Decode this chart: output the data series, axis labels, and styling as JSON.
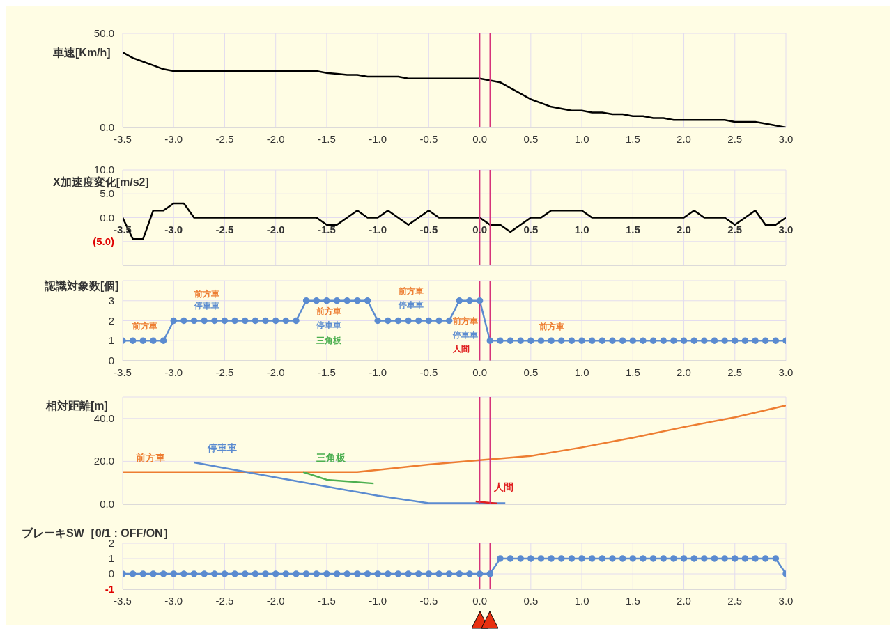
{
  "chart_data": [
    {
      "type": "line",
      "title": "車速[Km/h]",
      "x": [
        -3.5,
        -3.4,
        -3.3,
        -3.2,
        -3.1,
        -3.0,
        -2.9,
        -2.8,
        -2.7,
        -2.6,
        -2.5,
        -2.4,
        -2.3,
        -2.2,
        -2.1,
        -2.0,
        -1.9,
        -1.8,
        -1.7,
        -1.6,
        -1.5,
        -1.4,
        -1.3,
        -1.2,
        -1.1,
        -1.0,
        -0.9,
        -0.8,
        -0.7,
        -0.6,
        -0.5,
        -0.4,
        -0.3,
        -0.2,
        -0.1,
        0.0,
        0.1,
        0.2,
        0.3,
        0.4,
        0.5,
        0.6,
        0.7,
        0.8,
        0.9,
        1.0,
        1.1,
        1.2,
        1.3,
        1.4,
        1.5,
        1.6,
        1.7,
        1.8,
        1.9,
        2.0,
        2.1,
        2.2,
        2.3,
        2.4,
        2.5,
        2.6,
        2.7,
        2.8,
        2.9,
        3.0
      ],
      "series": [
        {
          "color": "#000000",
          "values": [
            40,
            37,
            35,
            33,
            31,
            30,
            30,
            30,
            30,
            30,
            30,
            30,
            30,
            30,
            30,
            30,
            30,
            30,
            30,
            30,
            29,
            28.5,
            28,
            28,
            27,
            27,
            27,
            27,
            26,
            26,
            26,
            26,
            26,
            26,
            26,
            26,
            25,
            24,
            21,
            18,
            15,
            13,
            11,
            10,
            9,
            9,
            8,
            8,
            7,
            7,
            6,
            6,
            5,
            5,
            4,
            4,
            4,
            4,
            4,
            4,
            3,
            3,
            3,
            2,
            1,
            0
          ]
        }
      ],
      "xlim": [
        -3.5,
        3.0
      ],
      "xticks": [
        {
          "value": -3.5,
          "label": "-3.5"
        },
        {
          "value": -3,
          "label": "-3.0"
        },
        {
          "value": -2.5,
          "label": "-2.5"
        },
        {
          "value": -2,
          "label": "-2.0"
        },
        {
          "value": -1.5,
          "label": "-1.5"
        },
        {
          "value": -1,
          "label": "-1.0"
        },
        {
          "value": -0.5,
          "label": "-0.5"
        },
        {
          "value": 0,
          "label": "0.0"
        },
        {
          "value": 0.5,
          "label": "0.5"
        },
        {
          "value": 1,
          "label": "1.0"
        },
        {
          "value": 1.5,
          "label": "1.5"
        },
        {
          "value": 2,
          "label": "2.0"
        },
        {
          "value": 2.5,
          "label": "2.5"
        },
        {
          "value": 3,
          "label": "3.0"
        }
      ],
      "ylim": [
        0,
        50
      ],
      "yticks": [
        {
          "value": 0,
          "label": "0.0"
        },
        {
          "value": 50,
          "label": "50.0"
        }
      ],
      "grid": true,
      "ref_lines": [
        {
          "axis": "x",
          "value": 0,
          "color": "#d6337a"
        },
        {
          "axis": "x",
          "value": 0.1,
          "color": "#d6337a"
        }
      ]
    },
    {
      "type": "line",
      "title": "X加速度変化[m/s2]",
      "x": [
        -3.5,
        -3.4,
        -3.3,
        -3.2,
        -3.1,
        -3.0,
        -2.9,
        -2.8,
        -2.7,
        -2.6,
        -2.5,
        -2.4,
        -2.3,
        -2.2,
        -2.1,
        -2.0,
        -1.9,
        -1.8,
        -1.7,
        -1.6,
        -1.5,
        -1.4,
        -1.3,
        -1.2,
        -1.1,
        -1.0,
        -0.9,
        -0.8,
        -0.7,
        -0.6,
        -0.5,
        -0.4,
        -0.3,
        -0.2,
        -0.1,
        0.0,
        0.1,
        0.2,
        0.3,
        0.4,
        0.5,
        0.6,
        0.7,
        0.8,
        0.9,
        1.0,
        1.1,
        1.2,
        1.3,
        1.4,
        1.5,
        1.6,
        1.7,
        1.8,
        1.9,
        2.0,
        2.1,
        2.2,
        2.3,
        2.4,
        2.5,
        2.6,
        2.7,
        2.8,
        2.9,
        3.0
      ],
      "series": [
        {
          "color": "#000000",
          "values": [
            0,
            -4.5,
            -4.5,
            1.5,
            1.5,
            3,
            3,
            0,
            0,
            0,
            0,
            0,
            0,
            0,
            0,
            0,
            0,
            0,
            0,
            0,
            -1.5,
            -1.5,
            0,
            1.5,
            0,
            0,
            1.5,
            0,
            -1.5,
            0,
            1.5,
            0,
            0,
            0,
            0,
            0,
            -1.5,
            -1.5,
            -3,
            -1.5,
            0,
            0,
            1.5,
            1.5,
            1.5,
            1.5,
            0,
            0,
            0,
            0,
            0,
            0,
            0,
            0,
            0,
            0,
            1.5,
            0,
            0,
            0,
            -1.5,
            0,
            1.5,
            -1.5,
            -1.5,
            0
          ]
        }
      ],
      "xlim": [
        -3.5,
        3.0
      ],
      "xticks": [
        {
          "value": -3.5,
          "label": "-3.5"
        },
        {
          "value": -3,
          "label": "-3.0"
        },
        {
          "value": -2.5,
          "label": "-2.5"
        },
        {
          "value": -2,
          "label": "-2.0"
        },
        {
          "value": -1.5,
          "label": "-1.5"
        },
        {
          "value": -1,
          "label": "-1.0"
        },
        {
          "value": -0.5,
          "label": "-0.5"
        },
        {
          "value": 0,
          "label": "0.0"
        },
        {
          "value": 0.5,
          "label": "0.5"
        },
        {
          "value": 1,
          "label": "1.0"
        },
        {
          "value": 1.5,
          "label": "1.5"
        },
        {
          "value": 2,
          "label": "2.0"
        },
        {
          "value": 2.5,
          "label": "2.5"
        },
        {
          "value": 3,
          "label": "3.0"
        }
      ],
      "ylim": [
        -10,
        10
      ],
      "yticks": [
        {
          "value": 10,
          "label": "10.0"
        },
        {
          "value": 5,
          "label": "5.0"
        },
        {
          "value": 0,
          "label": "0.0"
        },
        {
          "value": -5,
          "label": "(5.0)"
        },
        {
          "value": -10,
          "label": null
        }
      ],
      "grid": true,
      "ref_lines": [
        {
          "axis": "x",
          "value": 0,
          "color": "#d6337a"
        },
        {
          "axis": "x",
          "value": 0.1,
          "color": "#d6337a"
        }
      ]
    },
    {
      "type": "line",
      "title": "認識対象数[個]",
      "marker": "circle",
      "x": [
        -3.5,
        -3.4,
        -3.3,
        -3.2,
        -3.1,
        -3.0,
        -2.9,
        -2.8,
        -2.7,
        -2.6,
        -2.5,
        -2.4,
        -2.3,
        -2.2,
        -2.1,
        -2.0,
        -1.9,
        -1.8,
        -1.7,
        -1.6,
        -1.5,
        -1.4,
        -1.3,
        -1.2,
        -1.1,
        -1.0,
        -0.9,
        -0.8,
        -0.7,
        -0.6,
        -0.5,
        -0.4,
        -0.3,
        -0.2,
        -0.1,
        0.0,
        0.1,
        0.2,
        0.3,
        0.4,
        0.5,
        0.6,
        0.7,
        0.8,
        0.9,
        1.0,
        1.1,
        1.2,
        1.3,
        1.4,
        1.5,
        1.6,
        1.7,
        1.8,
        1.9,
        2.0,
        2.1,
        2.2,
        2.3,
        2.4,
        2.5,
        2.6,
        2.7,
        2.8,
        2.9,
        3.0
      ],
      "series": [
        {
          "color": "#5b8bd0",
          "values": [
            1,
            1,
            1,
            1,
            1,
            2,
            2,
            2,
            2,
            2,
            2,
            2,
            2,
            2,
            2,
            2,
            2,
            2,
            3,
            3,
            3,
            3,
            3,
            3,
            3,
            2,
            2,
            2,
            2,
            2,
            2,
            2,
            2,
            3,
            3,
            3,
            1,
            1,
            1,
            1,
            1,
            1,
            1,
            1,
            1,
            1,
            1,
            1,
            1,
            1,
            1,
            1,
            1,
            1,
            1,
            1,
            1,
            1,
            1,
            1,
            1,
            1,
            1,
            1,
            1,
            1
          ]
        }
      ],
      "xlim": [
        -3.5,
        3.0
      ],
      "xticks": [
        {
          "value": -3.5,
          "label": "-3.5"
        },
        {
          "value": -3,
          "label": "-3.0"
        },
        {
          "value": -2.5,
          "label": "-2.5"
        },
        {
          "value": -2,
          "label": "-2.0"
        },
        {
          "value": -1.5,
          "label": "-1.5"
        },
        {
          "value": -1,
          "label": "-1.0"
        },
        {
          "value": -0.5,
          "label": "-0.5"
        },
        {
          "value": 0,
          "label": "0.0"
        },
        {
          "value": 0.5,
          "label": "0.5"
        },
        {
          "value": 1,
          "label": "1.0"
        },
        {
          "value": 1.5,
          "label": "1.5"
        },
        {
          "value": 2,
          "label": "2.0"
        },
        {
          "value": 2.5,
          "label": "2.5"
        },
        {
          "value": 3,
          "label": "3.0"
        }
      ],
      "ylim": [
        0,
        4
      ],
      "yticks": [
        0,
        1,
        2,
        3,
        {
          "value": 4,
          "label": null
        }
      ],
      "grid": true,
      "annotations": [
        "前方車",
        "前方車",
        "停車車",
        "前方車",
        "停車車",
        "三角板",
        "前方車",
        "停車車",
        "前方車",
        "停車車",
        "人間",
        "前方車"
      ],
      "ref_lines": [
        {
          "axis": "x",
          "value": 0,
          "color": "#d6337a"
        },
        {
          "axis": "x",
          "value": 0.1,
          "color": "#d6337a"
        }
      ]
    },
    {
      "type": "line",
      "title": "相対距離[m]",
      "tick_labels": "y",
      "series": [
        {
          "name": "前方車",
          "color": "#ed7d31",
          "x": [
            -3.5,
            -1.2,
            -1.0,
            -0.5,
            0,
            0.5,
            1.0,
            1.5,
            2.0,
            2.5,
            3.0
          ],
          "values": [
            15,
            15,
            16,
            18.5,
            20.5,
            22.5,
            26.5,
            31,
            36,
            40.5,
            46
          ]
        },
        {
          "name": "停車車",
          "color": "#5b8bd0",
          "x": [
            -2.8,
            -2.0,
            -1.0,
            -0.5,
            0.25
          ],
          "values": [
            19.5,
            12.5,
            4,
            0.5,
            0.5
          ]
        },
        {
          "name": "三角板",
          "color": "#4caf50",
          "x": [
            -1.73,
            -1.5,
            -1.04
          ],
          "values": [
            15,
            11.4,
            9.7
          ]
        },
        {
          "name": "人間",
          "color": "#e02020",
          "x": [
            -0.04,
            0.17
          ],
          "values": [
            1.3,
            0.3
          ]
        }
      ],
      "xlim": [
        -3.5,
        3.0
      ],
      "xticks": [
        {
          "value": -3.5,
          "label": null
        },
        {
          "value": -3,
          "label": null
        },
        {
          "value": -2.5,
          "label": null
        },
        {
          "value": -2,
          "label": null
        },
        {
          "value": -1.5,
          "label": null
        },
        {
          "value": -1,
          "label": null
        },
        {
          "value": -0.5,
          "label": null
        },
        {
          "value": 0,
          "label": null
        },
        {
          "value": 0.5,
          "label": null
        },
        {
          "value": 1,
          "label": null
        },
        {
          "value": 1.5,
          "label": null
        },
        {
          "value": 2,
          "label": null
        },
        {
          "value": 2.5,
          "label": null
        },
        {
          "value": 3,
          "label": null
        }
      ],
      "ylim": [
        0,
        50
      ],
      "yticks": [
        {
          "value": 0,
          "label": "0.0"
        },
        {
          "value": 20,
          "label": "20.0"
        },
        {
          "value": 40,
          "label": "40.0"
        }
      ],
      "grid": true,
      "ref_lines": [
        {
          "axis": "x",
          "value": 0,
          "color": "#d6337a"
        },
        {
          "axis": "x",
          "value": 0.1,
          "color": "#d6337a"
        }
      ]
    },
    {
      "type": "line",
      "title": "ブレーキSW［0/1 : OFF/ON］",
      "marker": "circle",
      "x": [
        -3.5,
        -3.4,
        -3.3,
        -3.2,
        -3.1,
        -3.0,
        -2.9,
        -2.8,
        -2.7,
        -2.6,
        -2.5,
        -2.4,
        -2.3,
        -2.2,
        -2.1,
        -2.0,
        -1.9,
        -1.8,
        -1.7,
        -1.6,
        -1.5,
        -1.4,
        -1.3,
        -1.2,
        -1.1,
        -1.0,
        -0.9,
        -0.8,
        -0.7,
        -0.6,
        -0.5,
        -0.4,
        -0.3,
        -0.2,
        -0.1,
        0.0,
        0.1,
        0.2,
        0.3,
        0.4,
        0.5,
        0.6,
        0.7,
        0.8,
        0.9,
        1.0,
        1.1,
        1.2,
        1.3,
        1.4,
        1.5,
        1.6,
        1.7,
        1.8,
        1.9,
        2.0,
        2.1,
        2.2,
        2.3,
        2.4,
        2.5,
        2.6,
        2.7,
        2.8,
        2.9,
        3.0
      ],
      "series": [
        {
          "color": "#5b8bd0",
          "values": [
            0,
            0,
            0,
            0,
            0,
            0,
            0,
            0,
            0,
            0,
            0,
            0,
            0,
            0,
            0,
            0,
            0,
            0,
            0,
            0,
            0,
            0,
            0,
            0,
            0,
            0,
            0,
            0,
            0,
            0,
            0,
            0,
            0,
            0,
            0,
            0,
            0,
            1,
            1,
            1,
            1,
            1,
            1,
            1,
            1,
            1,
            1,
            1,
            1,
            1,
            1,
            1,
            1,
            1,
            1,
            1,
            1,
            1,
            1,
            1,
            1,
            1,
            1,
            1,
            1,
            0
          ]
        }
      ],
      "xlim": [
        -3.5,
        3.0
      ],
      "xticks": [
        {
          "value": -3.5,
          "label": "-3.5"
        },
        {
          "value": -3,
          "label": "-3.0"
        },
        {
          "value": -2.5,
          "label": "-2.5"
        },
        {
          "value": -2,
          "label": "-2.0"
        },
        {
          "value": -1.5,
          "label": "-1.5"
        },
        {
          "value": -1,
          "label": "-1.0"
        },
        {
          "value": -0.5,
          "label": "-0.5"
        },
        {
          "value": 0,
          "label": "0.0"
        },
        {
          "value": 0.5,
          "label": "0.5"
        },
        {
          "value": 1,
          "label": "1.0"
        },
        {
          "value": 1.5,
          "label": "1.5"
        },
        {
          "value": 2,
          "label": "2.0"
        },
        {
          "value": 2.5,
          "label": "2.5"
        },
        {
          "value": 3,
          "label": "3.0"
        }
      ],
      "ylim": [
        -1,
        2
      ],
      "yticks": [
        2,
        1,
        0,
        -1
      ],
      "grid": true,
      "ref_lines": [
        {
          "axis": "x",
          "value": 0,
          "color": "#d6337a"
        },
        {
          "axis": "x",
          "value": 0.1,
          "color": "#d6337a"
        }
      ]
    }
  ]
}
